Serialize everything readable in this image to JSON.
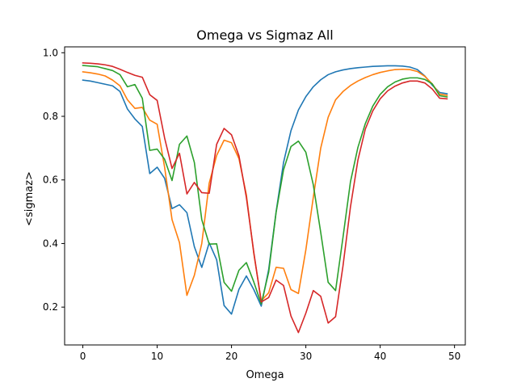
{
  "chart_data": {
    "type": "line",
    "title": "Omega vs Sigmaz All",
    "xlabel": "Omega",
    "ylabel": "<sigmaz>",
    "xlim": [
      -2.45,
      51.45
    ],
    "ylim": [
      0.081,
      1.0185
    ],
    "x_ticks": [
      0,
      10,
      20,
      30,
      40,
      50
    ],
    "y_ticks": [
      0.2,
      0.4,
      0.6,
      0.8,
      1.0
    ],
    "x_tick_labels": [
      "0",
      "10",
      "20",
      "30",
      "40",
      "50"
    ],
    "y_tick_labels": [
      "0.2",
      "0.4",
      "0.6",
      "0.8",
      "1.0"
    ],
    "grid": false,
    "legend": "none",
    "x": [
      0,
      1,
      2,
      3,
      4,
      5,
      6,
      7,
      8,
      9,
      10,
      11,
      12,
      13,
      14,
      15,
      16,
      17,
      18,
      19,
      20,
      21,
      22,
      23,
      24,
      25,
      26,
      27,
      28,
      29,
      30,
      31,
      32,
      33,
      34,
      35,
      36,
      37,
      38,
      39,
      40,
      41,
      42,
      43,
      44,
      45,
      46,
      47,
      48,
      49
    ],
    "series": [
      {
        "color": "#1f77b4",
        "values": [
          0.914,
          0.911,
          0.906,
          0.901,
          0.896,
          0.878,
          0.823,
          0.792,
          0.768,
          0.62,
          0.64,
          0.605,
          0.51,
          0.522,
          0.497,
          0.39,
          0.325,
          0.402,
          0.349,
          0.205,
          0.178,
          0.256,
          0.298,
          0.255,
          0.203,
          0.318,
          0.5,
          0.655,
          0.755,
          0.82,
          0.862,
          0.893,
          0.915,
          0.931,
          0.94,
          0.946,
          0.95,
          0.953,
          0.955,
          0.957,
          0.958,
          0.959,
          0.959,
          0.958,
          0.955,
          0.947,
          0.927,
          0.898,
          0.875,
          0.871
        ]
      },
      {
        "color": "#ff7f0e",
        "values": [
          0.94,
          0.937,
          0.933,
          0.927,
          0.914,
          0.896,
          0.852,
          0.825,
          0.828,
          0.788,
          0.775,
          0.64,
          0.475,
          0.403,
          0.237,
          0.3,
          0.4,
          0.59,
          0.677,
          0.725,
          0.717,
          0.667,
          0.553,
          0.368,
          0.22,
          0.245,
          0.325,
          0.322,
          0.255,
          0.243,
          0.38,
          0.545,
          0.7,
          0.797,
          0.852,
          0.878,
          0.897,
          0.911,
          0.922,
          0.931,
          0.938,
          0.943,
          0.947,
          0.948,
          0.947,
          0.941,
          0.926,
          0.902,
          0.87,
          0.866
        ]
      },
      {
        "color": "#2ca02c",
        "values": [
          0.96,
          0.958,
          0.956,
          0.95,
          0.944,
          0.931,
          0.893,
          0.9,
          0.857,
          0.693,
          0.697,
          0.665,
          0.598,
          0.712,
          0.738,
          0.655,
          0.475,
          0.398,
          0.399,
          0.278,
          0.25,
          0.316,
          0.34,
          0.279,
          0.21,
          0.31,
          0.498,
          0.632,
          0.705,
          0.722,
          0.687,
          0.585,
          0.435,
          0.278,
          0.252,
          0.42,
          0.594,
          0.702,
          0.777,
          0.832,
          0.869,
          0.893,
          0.908,
          0.917,
          0.921,
          0.921,
          0.916,
          0.902,
          0.865,
          0.861
        ]
      },
      {
        "color": "#d62728",
        "values": [
          0.968,
          0.967,
          0.965,
          0.962,
          0.957,
          0.948,
          0.938,
          0.929,
          0.923,
          0.868,
          0.85,
          0.732,
          0.636,
          0.684,
          0.556,
          0.592,
          0.56,
          0.558,
          0.712,
          0.762,
          0.742,
          0.676,
          0.545,
          0.372,
          0.216,
          0.23,
          0.285,
          0.268,
          0.172,
          0.12,
          0.181,
          0.252,
          0.234,
          0.15,
          0.17,
          0.33,
          0.515,
          0.662,
          0.76,
          0.817,
          0.855,
          0.88,
          0.895,
          0.905,
          0.911,
          0.911,
          0.905,
          0.886,
          0.857,
          0.855
        ]
      }
    ]
  }
}
